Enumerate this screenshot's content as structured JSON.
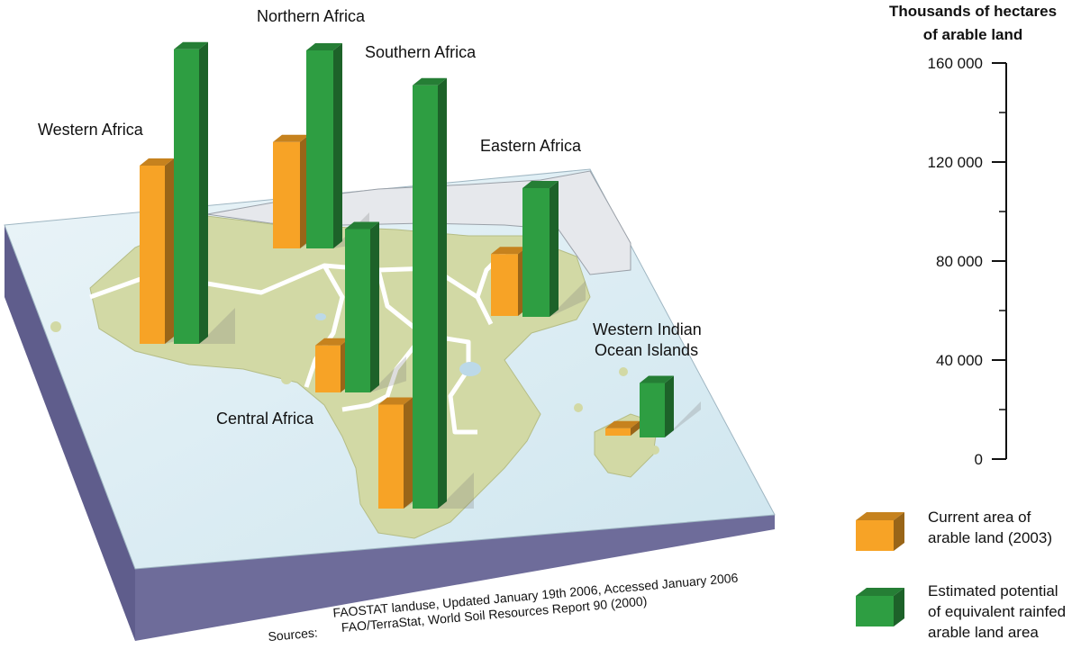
{
  "chart_data": {
    "type": "bar",
    "title": "",
    "axis_title": [
      "Thousands of hectares",
      "of arable land"
    ],
    "ylim": [
      0,
      160000
    ],
    "y_ticks": [
      {
        "value": 0,
        "label": "0"
      },
      {
        "value": 40000,
        "label": "40 000"
      },
      {
        "value": 80000,
        "label": "80 000"
      },
      {
        "value": 120000,
        "label": "120 000"
      },
      {
        "value": 160000,
        "label": "160 000"
      }
    ],
    "categories": [
      "Western Africa",
      "Northern Africa",
      "Southern Africa",
      "Eastern Africa",
      "Central Africa",
      "Western Indian Ocean Islands"
    ],
    "category_label_lines": [
      [
        "Western Africa"
      ],
      [
        "Northern Africa"
      ],
      [
        "Southern Africa"
      ],
      [
        "Eastern Africa"
      ],
      [
        "Central Africa"
      ],
      [
        "Western Indian",
        "Ocean Islands"
      ]
    ],
    "series": [
      {
        "name": "Current area of arable land (2003)",
        "legend_lines": [
          "Current area of",
          "arable land (2003)"
        ],
        "color": "#F7A326",
        "values": [
          72000,
          43000,
          42000,
          25000,
          19000,
          3000
        ]
      },
      {
        "name": "Estimated potential of equivalent rainfed arable land area",
        "legend_lines": [
          "Estimated potential",
          "of equivalent rainfed",
          "arable land area"
        ],
        "color": "#2E9E42",
        "values": [
          119000,
          80000,
          171000,
          52000,
          66000,
          22000
        ]
      }
    ],
    "legend_position": "right"
  },
  "sources": {
    "prefix": "Sources:",
    "lines": [
      "FAOSTAT landuse, Updated January 19th 2006, Accessed January 2006",
      "FAO/TerraStat, World Soil Resources Report 90 (2000)"
    ]
  },
  "colors": {
    "board_top": "#DCEEF5",
    "board_side": "#6E6C9A",
    "land": "#D2D9A5",
    "land_grey": "#E6E8EC",
    "orange": "#F7A326",
    "green": "#2E9E42"
  }
}
